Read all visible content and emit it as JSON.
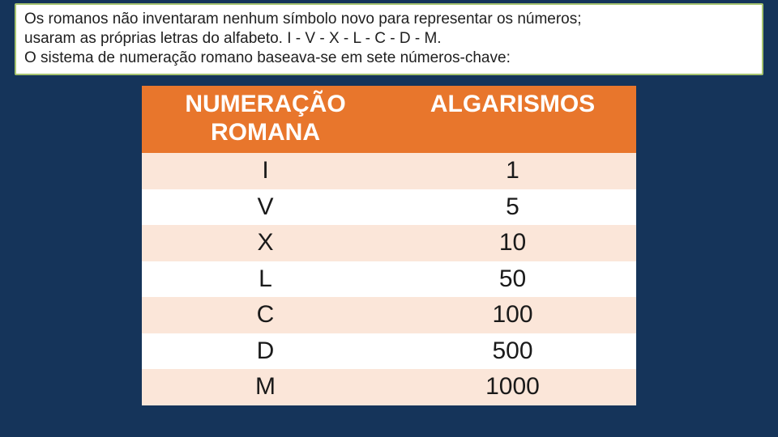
{
  "intro": {
    "line1": "Os romanos não inventaram nenhum símbolo novo para representar os números;",
    "line2": "usaram as próprias letras do alfabeto. I - V - X - L - C - D - M.",
    "line3": "O sistema de numeração romano baseava-se em sete números-chave:"
  },
  "table": {
    "type": "table",
    "header_bg": "#e8762c",
    "header_fg": "#ffffff",
    "row_odd_bg": "#fbe6d9",
    "row_even_bg": "#ffffff",
    "font_size_header": 30,
    "font_size_cell": 30,
    "columns": [
      {
        "label": "NUMERAÇÃO ROMANA",
        "width": 0.5,
        "align": "center"
      },
      {
        "label": "ALGARISMOS",
        "width": 0.5,
        "align": "center"
      }
    ],
    "rows": [
      {
        "roman": "I",
        "value": "1"
      },
      {
        "roman": "V",
        "value": "5"
      },
      {
        "roman": "X",
        "value": "10"
      },
      {
        "roman": "L",
        "value": "50"
      },
      {
        "roman": "C",
        "value": "100"
      },
      {
        "roman": "D",
        "value": "500"
      },
      {
        "roman": "M",
        "value": "1000"
      }
    ]
  },
  "page_bg": "#15345a",
  "intro_border": "#a6c36f"
}
